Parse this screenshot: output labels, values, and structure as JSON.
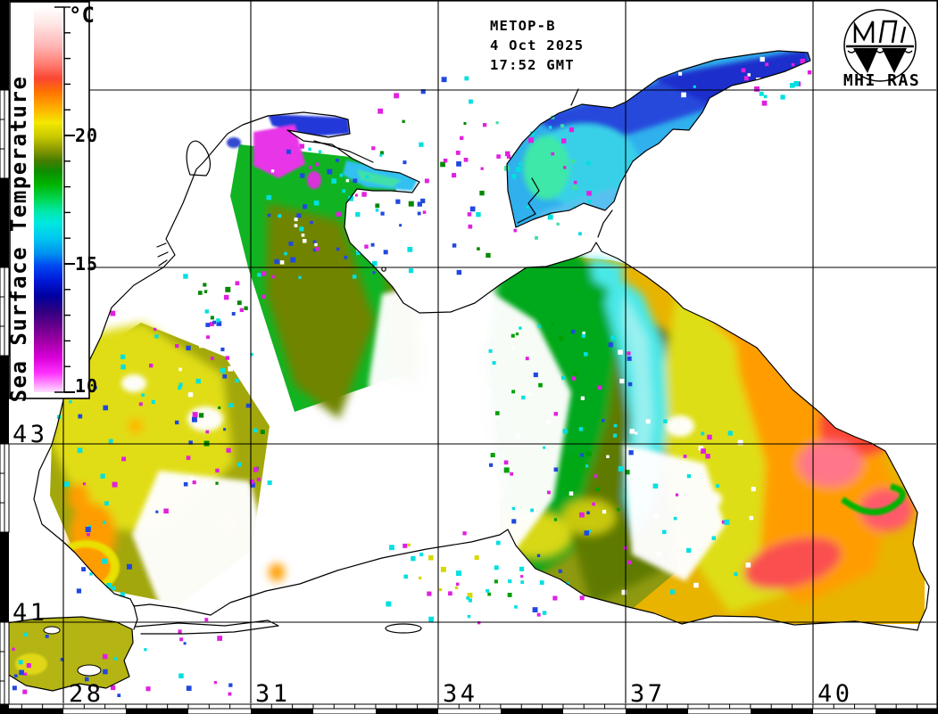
{
  "header": {
    "satellite": "METOP-B",
    "date": "4 Oct 2025",
    "time": "17:52 GMT"
  },
  "logo": {
    "label": "MHI RAS"
  },
  "colorbar": {
    "title": "Sea Surface Temperature",
    "unit": "°C",
    "min": 10,
    "max": 25,
    "tick_labels": [
      "20",
      "15",
      "10"
    ],
    "tick_values": [
      20,
      15,
      10
    ],
    "gradient_stops": [
      [
        "0.000",
        "#ffffff"
      ],
      [
        "0.040",
        "#ffe8e8"
      ],
      [
        "0.100",
        "#ffb6b6"
      ],
      [
        "0.150",
        "#ff7a6e"
      ],
      [
        "0.185",
        "#fa4633"
      ],
      [
        "0.220",
        "#ff7300"
      ],
      [
        "0.260",
        "#ffab00"
      ],
      [
        "0.300",
        "#f4e800"
      ],
      [
        "0.337",
        "#c8c800"
      ],
      [
        "0.370",
        "#8a9a00"
      ],
      [
        "0.400",
        "#447c00"
      ],
      [
        "0.425",
        "#0f8c00"
      ],
      [
        "0.460",
        "#00b400"
      ],
      [
        "0.500",
        "#00d855"
      ],
      [
        "0.530",
        "#00e8a8"
      ],
      [
        "0.560",
        "#00e8e0"
      ],
      [
        "0.600",
        "#00c8f0"
      ],
      [
        "0.640",
        "#0090f0"
      ],
      [
        "0.672",
        "#0048f0"
      ],
      [
        "0.710",
        "#0018d8"
      ],
      [
        "0.750",
        "#0000a0"
      ],
      [
        "0.790",
        "#300080"
      ],
      [
        "0.830",
        "#68008c"
      ],
      [
        "0.870",
        "#a400a8"
      ],
      [
        "0.910",
        "#d800d8"
      ],
      [
        "0.950",
        "#ff30ff"
      ],
      [
        "0.985",
        "#ffaaff"
      ],
      [
        "1.000",
        "#ffe0ff"
      ]
    ]
  },
  "map": {
    "longitude_labels": [
      "28",
      "31",
      "34",
      "37",
      "40"
    ],
    "latitude_labels": [
      "43",
      "41"
    ]
  },
  "colors": {
    "coastline": "#000000",
    "land": "#ffffff",
    "cloud": "#ffffff",
    "frame": "#000000",
    "sst_palette": {
      "warm_red": "#fa4633",
      "orange": "#ff9d00",
      "yellow": "#e0dd16",
      "olive": "#a2a70c",
      "dark_olive": "#6f8400",
      "green": "#10b422",
      "cyan": "#48e8e8",
      "light_blue": "#38d0e8",
      "blue": "#2848dc",
      "navy": "#1c2ecc",
      "magenta": "#e836e8",
      "pale_pink": "#ffaaff"
    }
  }
}
